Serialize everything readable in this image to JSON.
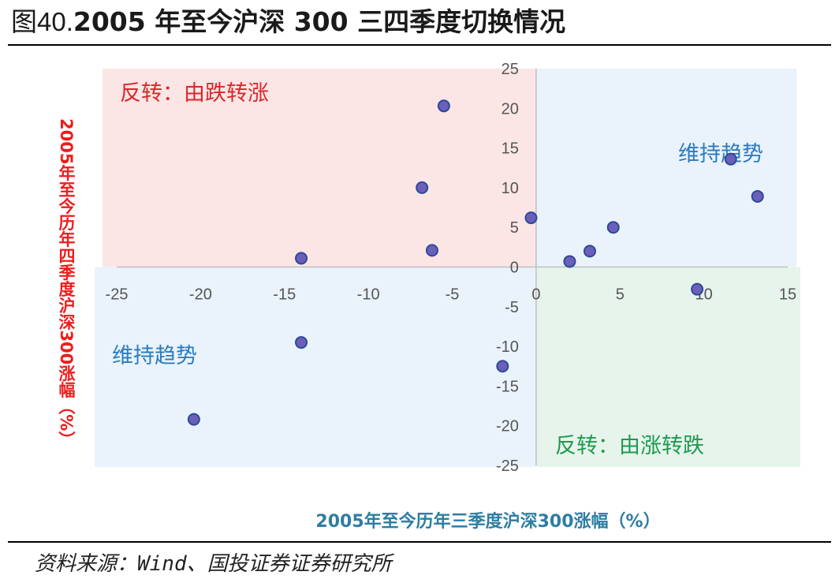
{
  "figure": {
    "prefix": "图40.",
    "title": "2005 年至今沪深 300 三四季度切换情况",
    "source": "资料来源：Wind、国投证券证券研究所"
  },
  "colors": {
    "red_zone": "#fbe5e5",
    "blue_zone": "#eaf3fb",
    "green_zone": "#e7f4ec",
    "point_fill": "#6c5fb8",
    "point_stroke": "#2c4a9a",
    "red_text": "#d9282b",
    "blue_text": "#2a7bbf",
    "green_text": "#1f9a4f"
  },
  "chart_data": {
    "type": "scatter",
    "title": "2005 年至今沪深 300 三四季度切换情况",
    "xlabel": "2005年至今历年三季度沪深300涨幅（%）",
    "ylabel": "2005年至今历年四季度沪深300涨幅（%）",
    "xlim": [
      -25,
      15
    ],
    "ylim": [
      -25,
      25
    ],
    "xticks": [
      "-25",
      "-20",
      "-15",
      "-10",
      "-5",
      "0",
      "5",
      "10",
      "15"
    ],
    "yticks": [
      "25",
      "20",
      "15",
      "10",
      "5",
      "0",
      "-5",
      "-10",
      "-15",
      "-20",
      "-25"
    ],
    "quadrant_labels": {
      "top_left": "反转：由跌转涨",
      "top_right": "维持趋势",
      "bottom_left": "维持趋势",
      "bottom_right": "反转：由涨转跌"
    },
    "points": [
      {
        "x": -5.5,
        "y": 20.3
      },
      {
        "x": -6.8,
        "y": 10.0
      },
      {
        "x": -6.2,
        "y": 2.1
      },
      {
        "x": -14.0,
        "y": 1.1
      },
      {
        "x": -0.3,
        "y": 6.2
      },
      {
        "x": 2.0,
        "y": 0.7
      },
      {
        "x": 3.2,
        "y": 2.0
      },
      {
        "x": 4.6,
        "y": 5.0
      },
      {
        "x": 11.6,
        "y": 13.6
      },
      {
        "x": 13.2,
        "y": 8.9
      },
      {
        "x": 9.6,
        "y": -2.8
      },
      {
        "x": -14.0,
        "y": -9.5
      },
      {
        "x": -2.0,
        "y": -12.5
      },
      {
        "x": -20.4,
        "y": -19.2
      }
    ]
  }
}
